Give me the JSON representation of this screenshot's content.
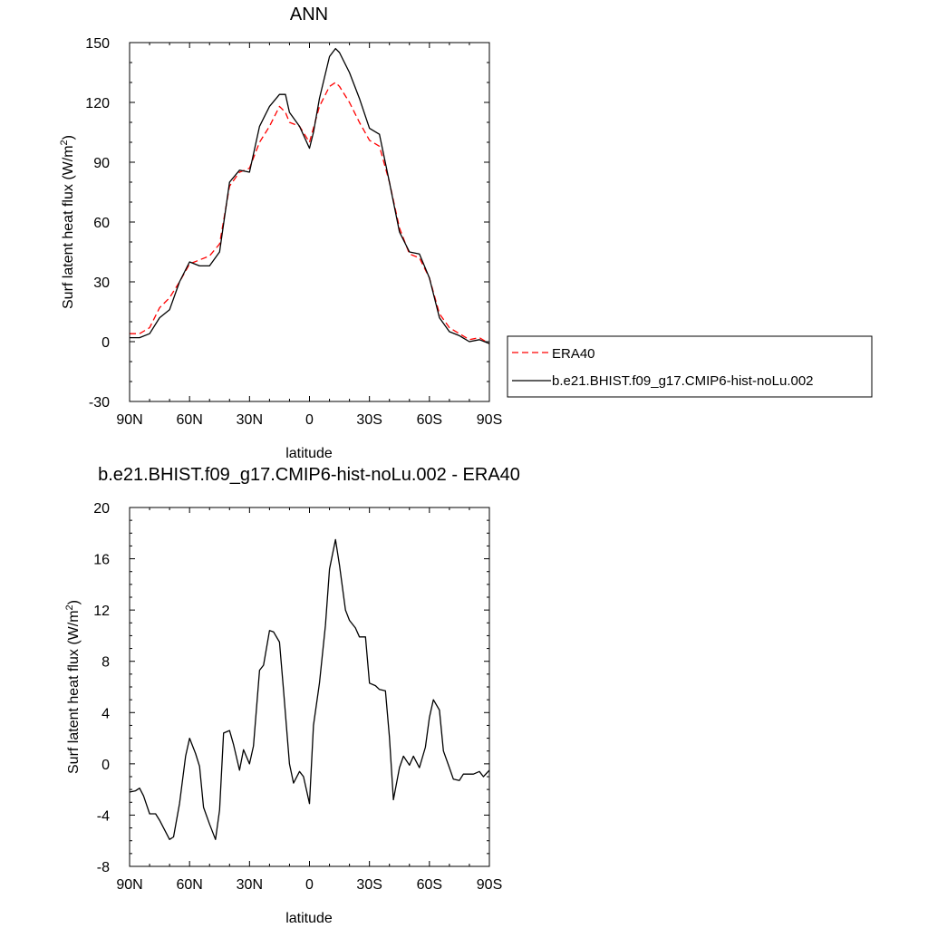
{
  "chart_data": [
    {
      "type": "line",
      "title": "ANN",
      "xlabel": "latitude",
      "ylabel_main": "Surf latent heat flux (W/m",
      "ylabel_sup": "2",
      "ylabel_tail": ")",
      "xlim": [
        90,
        -90
      ],
      "ylim": [
        -30,
        150
      ],
      "xticks": [
        90,
        60,
        30,
        0,
        -30,
        -60,
        -90
      ],
      "xtick_labels": [
        "90N",
        "60N",
        "30N",
        "0",
        "30S",
        "60S",
        "90S"
      ],
      "yticks": [
        -30,
        0,
        30,
        60,
        90,
        120,
        150
      ],
      "ytick_labels": [
        "-30",
        "0",
        "30",
        "60",
        "90",
        "120",
        "150"
      ],
      "grid": false,
      "legend_position": "right",
      "series": [
        {
          "name": "ERA40",
          "color": "#ff0000",
          "dash": true,
          "x": [
            90,
            85,
            80,
            75,
            70,
            65,
            60,
            55,
            50,
            45,
            40,
            35,
            30,
            25,
            20,
            15,
            12,
            10,
            5,
            0,
            -5,
            -10,
            -13,
            -15,
            -20,
            -25,
            -30,
            -35,
            -40,
            -45,
            -50,
            -55,
            -60,
            -65,
            -70,
            -75,
            -80,
            -85,
            -90
          ],
          "y": [
            4,
            4,
            7,
            17,
            22,
            30,
            39,
            41,
            43,
            49,
            78,
            85,
            87,
            100,
            108,
            118,
            115,
            110,
            108,
            100,
            118,
            128,
            130,
            128,
            120,
            110,
            101,
            98,
            80,
            57,
            44,
            42,
            32,
            14,
            7,
            4,
            1,
            2,
            -1
          ]
        },
        {
          "name": "b.e21.BHIST.f09_g17.CMIP6-hist-noLu.002",
          "color": "#000000",
          "dash": false,
          "x": [
            90,
            85,
            80,
            75,
            70,
            65,
            60,
            55,
            50,
            45,
            40,
            35,
            30,
            25,
            20,
            15,
            12,
            10,
            5,
            0,
            -2,
            -5,
            -10,
            -13,
            -15,
            -20,
            -25,
            -30,
            -35,
            -40,
            -45,
            -50,
            -55,
            -60,
            -65,
            -70,
            -75,
            -80,
            -85,
            -90
          ],
          "y": [
            2,
            2,
            4,
            12,
            16,
            30,
            40,
            38,
            38,
            45,
            80,
            86,
            85,
            108,
            118,
            124,
            124,
            115,
            108,
            97,
            105,
            122,
            143,
            147,
            145,
            135,
            122,
            107,
            104,
            80,
            55,
            45,
            44,
            32,
            12,
            5,
            3,
            0,
            1,
            -1
          ]
        }
      ]
    },
    {
      "type": "line",
      "title": "b.e21.BHIST.f09_g17.CMIP6-hist-noLu.002 - ERA40",
      "xlabel": "latitude",
      "ylabel_main": "Surf latent heat flux (W/m",
      "ylabel_sup": "2",
      "ylabel_tail": ")",
      "xlim": [
        90,
        -90
      ],
      "ylim": [
        -8,
        20
      ],
      "xticks": [
        90,
        60,
        30,
        0,
        -30,
        -60,
        -90
      ],
      "xtick_labels": [
        "90N",
        "60N",
        "30N",
        "0",
        "30S",
        "60S",
        "90S"
      ],
      "yticks": [
        -8,
        -4,
        0,
        4,
        8,
        12,
        16,
        20
      ],
      "ytick_labels": [
        "-8",
        "-4",
        "0",
        "4",
        "8",
        "12",
        "16",
        "20"
      ],
      "grid": false,
      "series": [
        {
          "color": "#000000",
          "dash": false,
          "x": [
            90,
            87,
            85,
            83,
            80,
            77,
            75,
            73,
            70,
            68,
            65,
            62,
            60,
            57,
            55,
            53,
            50,
            47,
            45,
            43,
            40,
            38,
            35,
            33,
            30,
            28,
            25,
            23,
            20,
            18,
            15,
            13,
            10,
            8,
            5,
            3,
            0,
            -2,
            -5,
            -8,
            -10,
            -13,
            -15,
            -18,
            -20,
            -23,
            -25,
            -28,
            -30,
            -33,
            -35,
            -38,
            -40,
            -42,
            -45,
            -47,
            -50,
            -52,
            -55,
            -58,
            -60,
            -62,
            -65,
            -67,
            -70,
            -72,
            -75,
            -77,
            -80,
            -82,
            -85,
            -87,
            -90
          ],
          "y": [
            -2.2,
            -2.1,
            -1.9,
            -2.5,
            -3.9,
            -3.9,
            -4.4,
            -5.0,
            -5.9,
            -5.7,
            -3.1,
            0.6,
            2.0,
            0.8,
            -0.2,
            -3.4,
            -4.7,
            -5.9,
            -3.6,
            2.4,
            2.6,
            1.5,
            -0.5,
            1.1,
            0,
            1.4,
            7.3,
            7.7,
            10.4,
            10.3,
            9.5,
            5.8,
            0,
            -1.5,
            -0.6,
            -1.0,
            -3.1,
            3.0,
            6.3,
            10.8,
            15.2,
            17.5,
            15.5,
            12,
            11.2,
            10.6,
            9.9,
            9.9,
            6.3,
            6.1,
            5.8,
            5.7,
            2.1,
            -2.8,
            -0.3,
            0.6,
            -0.1,
            0.6,
            -0.3,
            1.3,
            3.6,
            5.0,
            4.2,
            1.0,
            -0.3,
            -1.2,
            -1.3,
            -0.8,
            -0.8,
            -0.8,
            -0.6,
            -1.0,
            -0.5
          ]
        }
      ]
    }
  ]
}
